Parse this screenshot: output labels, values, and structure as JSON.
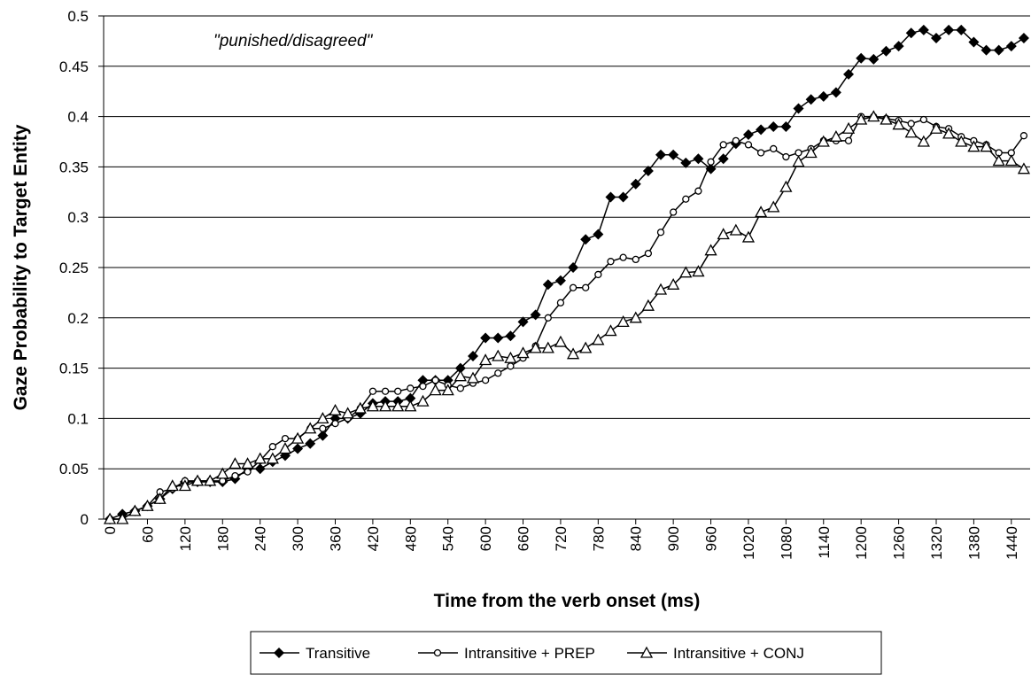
{
  "chart_data": {
    "type": "line",
    "annotation": "\"punished/disagreed\"",
    "xlabel": "Time from the verb onset (ms)",
    "ylabel": "Gaze Probability to Target Entity",
    "x": [
      0,
      20,
      40,
      60,
      80,
      100,
      120,
      140,
      160,
      180,
      200,
      220,
      240,
      260,
      280,
      300,
      320,
      340,
      360,
      380,
      400,
      420,
      440,
      460,
      480,
      500,
      520,
      540,
      560,
      580,
      600,
      620,
      640,
      660,
      680,
      700,
      720,
      740,
      760,
      780,
      800,
      820,
      840,
      860,
      880,
      900,
      920,
      940,
      960,
      980,
      1000,
      1020,
      1040,
      1060,
      1080,
      1100,
      1120,
      1140,
      1160,
      1180,
      1200,
      1220,
      1240,
      1260,
      1280,
      1300,
      1320,
      1340,
      1360,
      1380,
      1400,
      1420,
      1440,
      1460
    ],
    "xlim": [
      -10,
      1470
    ],
    "xticks": [
      0,
      60,
      120,
      180,
      240,
      300,
      360,
      420,
      480,
      540,
      600,
      660,
      720,
      780,
      840,
      900,
      960,
      1020,
      1080,
      1140,
      1200,
      1260,
      1320,
      1380,
      1440
    ],
    "ylim": [
      0,
      0.5
    ],
    "yticks": [
      0,
      0.05,
      0.1,
      0.15,
      0.2,
      0.25,
      0.3,
      0.35,
      0.4,
      0.45,
      0.5
    ],
    "grid": true,
    "legend": "bottom",
    "series": [
      {
        "name": "Transitive",
        "color": "#000000",
        "marker": "diamond",
        "values": [
          0,
          0.005,
          0.008,
          0.013,
          0.02,
          0.03,
          0.037,
          0.037,
          0.037,
          0.037,
          0.04,
          0.05,
          0.05,
          0.057,
          0.063,
          0.07,
          0.075,
          0.083,
          0.1,
          0.1,
          0.105,
          0.115,
          0.117,
          0.117,
          0.12,
          0.138,
          0.138,
          0.138,
          0.15,
          0.162,
          0.18,
          0.18,
          0.182,
          0.196,
          0.203,
          0.233,
          0.237,
          0.25,
          0.278,
          0.283,
          0.32,
          0.32,
          0.333,
          0.346,
          0.362,
          0.362,
          0.354,
          0.358,
          0.348,
          0.358,
          0.373,
          0.382,
          0.387,
          0.39,
          0.39,
          0.408,
          0.417,
          0.42,
          0.424,
          0.442,
          0.458,
          0.457,
          0.465,
          0.47,
          0.483,
          0.486,
          0.478,
          0.486,
          0.486,
          0.474,
          0.466,
          0.466,
          0.47,
          0.478
        ]
      },
      {
        "name": "Intransitive + PREP",
        "color": "#000000",
        "marker": "circle",
        "values": [
          0,
          0,
          0.008,
          0.013,
          0.027,
          0.03,
          0.038,
          0.038,
          0.038,
          0.038,
          0.043,
          0.047,
          0.058,
          0.072,
          0.08,
          0.08,
          0.09,
          0.09,
          0.095,
          0.1,
          0.11,
          0.127,
          0.127,
          0.127,
          0.13,
          0.132,
          0.138,
          0.133,
          0.13,
          0.135,
          0.138,
          0.145,
          0.152,
          0.16,
          0.172,
          0.2,
          0.215,
          0.23,
          0.23,
          0.243,
          0.256,
          0.26,
          0.258,
          0.264,
          0.285,
          0.305,
          0.318,
          0.326,
          0.355,
          0.372,
          0.376,
          0.372,
          0.364,
          0.368,
          0.36,
          0.364,
          0.368,
          0.376,
          0.376,
          0.376,
          0.4,
          0.4,
          0.398,
          0.396,
          0.393,
          0.397,
          0.39,
          0.388,
          0.38,
          0.376,
          0.372,
          0.364,
          0.364,
          0.381
        ]
      },
      {
        "name": "Intransitive + CONJ",
        "color": "#000000",
        "marker": "triangle",
        "values": [
          0,
          0,
          0.008,
          0.013,
          0.02,
          0.033,
          0.033,
          0.038,
          0.038,
          0.045,
          0.055,
          0.055,
          0.06,
          0.06,
          0.07,
          0.08,
          0.09,
          0.1,
          0.108,
          0.105,
          0.11,
          0.112,
          0.112,
          0.112,
          0.112,
          0.117,
          0.128,
          0.128,
          0.142,
          0.14,
          0.158,
          0.162,
          0.16,
          0.165,
          0.17,
          0.17,
          0.176,
          0.164,
          0.17,
          0.178,
          0.187,
          0.196,
          0.2,
          0.212,
          0.228,
          0.233,
          0.245,
          0.246,
          0.267,
          0.283,
          0.287,
          0.28,
          0.305,
          0.31,
          0.33,
          0.355,
          0.364,
          0.375,
          0.38,
          0.388,
          0.397,
          0.4,
          0.397,
          0.392,
          0.384,
          0.375,
          0.388,
          0.383,
          0.375,
          0.37,
          0.37,
          0.356,
          0.356,
          0.348
        ]
      }
    ]
  }
}
